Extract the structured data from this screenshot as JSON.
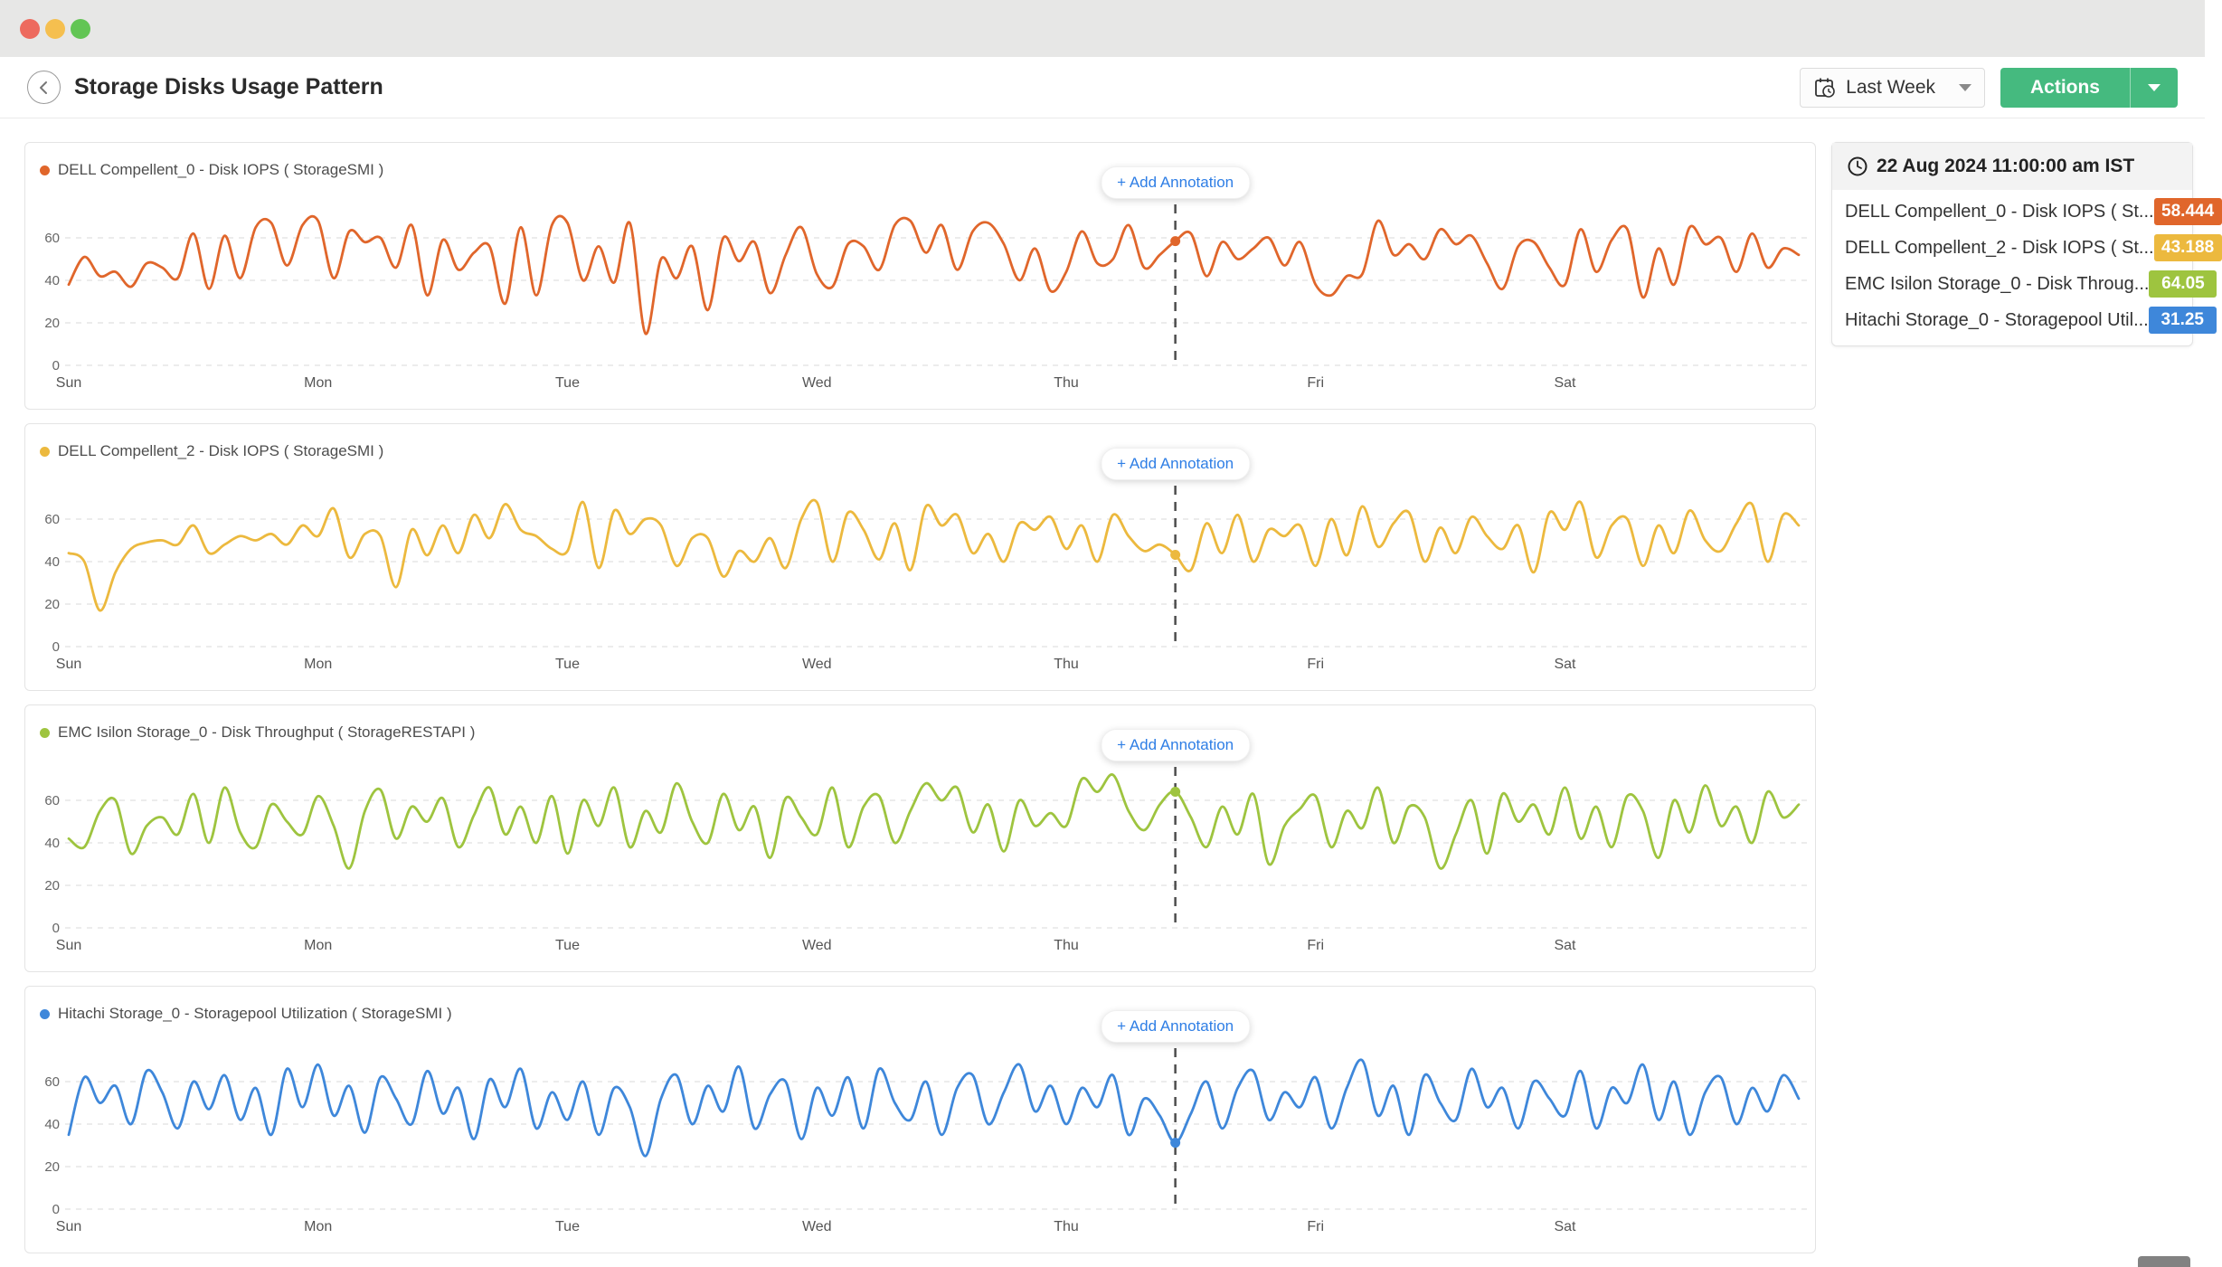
{
  "window": {
    "buttons": [
      "close",
      "minimize",
      "zoom"
    ]
  },
  "header": {
    "title": "Storage Disks Usage Pattern",
    "time_range_label": "Last Week",
    "actions_label": "Actions"
  },
  "annotation": {
    "button_label": "+ Add Annotation"
  },
  "tooltip_panel": {
    "timestamp": "22 Aug 2024 11:00:00 am IST",
    "rows": [
      {
        "label": "DELL Compellent_0 - Disk IOPS ( St...",
        "value": "58.444",
        "color": "#e0662b"
      },
      {
        "label": "DELL Compellent_2 - Disk IOPS ( St...",
        "value": "43.188",
        "color": "#ecb93e"
      },
      {
        "label": "EMC Isilon Storage_0 - Disk Throug...",
        "value": "64.05",
        "color": "#9ec43f"
      },
      {
        "label": "Hitachi Storage_0 - Storagepool Util...",
        "value": "31.25",
        "color": "#3e87da"
      }
    ]
  },
  "chart_data": [
    {
      "type": "line",
      "legend": "DELL Compellent_0 - Disk IOPS ( StorageSMI )",
      "color": "#e0662b",
      "x_labels": [
        "Sun",
        "Mon",
        "Tue",
        "Wed",
        "Thu",
        "Fri",
        "Sat"
      ],
      "y_ticks": [
        0,
        20,
        40,
        60
      ],
      "ylim": [
        0,
        75
      ],
      "points_per_day": 16,
      "cursor": {
        "index": 71,
        "value": 58.444
      },
      "values": [
        38,
        51,
        42,
        44,
        37,
        48,
        46,
        41,
        62,
        36,
        61,
        41,
        65,
        67,
        47,
        66,
        68,
        41,
        63,
        58,
        60,
        46,
        66,
        33,
        59,
        45,
        53,
        56,
        29,
        65,
        33,
        66,
        67,
        40,
        56,
        39,
        67,
        15,
        50,
        41,
        56,
        26,
        60,
        49,
        58,
        34,
        52,
        65,
        43,
        37,
        57,
        56,
        45,
        66,
        68,
        53,
        66,
        45,
        63,
        67,
        57,
        40,
        55,
        35,
        44,
        63,
        48,
        50,
        66,
        46,
        52,
        58.444,
        62,
        42,
        58,
        50,
        55,
        60,
        47,
        58,
        38,
        33,
        42,
        43,
        68,
        52,
        57,
        50,
        64,
        57,
        61,
        48,
        36,
        56,
        58,
        46,
        38,
        64,
        44,
        59,
        64,
        32,
        55,
        38,
        65,
        57,
        60,
        44,
        62,
        46,
        55,
        52
      ]
    },
    {
      "type": "line",
      "legend": "DELL Compellent_2 - Disk IOPS ( StorageSMI )",
      "color": "#ecb93e",
      "x_labels": [
        "Sun",
        "Mon",
        "Tue",
        "Wed",
        "Thu",
        "Fri",
        "Sat"
      ],
      "y_ticks": [
        0,
        20,
        40,
        60
      ],
      "ylim": [
        0,
        75
      ],
      "points_per_day": 16,
      "cursor": {
        "index": 71,
        "value": 43.188
      },
      "values": [
        44,
        40,
        17,
        35,
        46,
        49,
        50,
        48,
        57,
        44,
        48,
        52,
        50,
        53,
        48,
        57,
        52,
        65,
        42,
        53,
        52,
        28,
        55,
        43,
        57,
        44,
        62,
        51,
        67,
        55,
        52,
        46,
        45,
        68,
        37,
        64,
        53,
        60,
        57,
        38,
        51,
        51,
        33,
        45,
        40,
        51,
        37,
        60,
        68,
        40,
        63,
        55,
        41,
        58,
        36,
        66,
        57,
        62,
        44,
        53,
        40,
        58,
        55,
        61,
        46,
        57,
        40,
        62,
        52,
        45,
        48,
        43.188,
        36,
        58,
        44,
        62,
        40,
        55,
        52,
        57,
        38,
        60,
        43,
        66,
        47,
        58,
        63,
        40,
        56,
        44,
        61,
        52,
        46,
        57,
        35,
        63,
        55,
        68,
        42,
        57,
        60,
        38,
        57,
        44,
        64,
        50,
        45,
        58,
        67,
        40,
        62,
        57
      ]
    },
    {
      "type": "line",
      "legend": "EMC Isilon Storage_0 - Disk Throughput ( StorageRESTAPI )",
      "color": "#9ec43f",
      "x_labels": [
        "Sun",
        "Mon",
        "Tue",
        "Wed",
        "Thu",
        "Fri",
        "Sat"
      ],
      "y_ticks": [
        0,
        20,
        40,
        60
      ],
      "ylim": [
        0,
        75
      ],
      "points_per_day": 16,
      "cursor": {
        "index": 71,
        "value": 64.05
      },
      "values": [
        42,
        38,
        55,
        60,
        35,
        48,
        52,
        44,
        63,
        40,
        66,
        45,
        38,
        58,
        50,
        44,
        62,
        48,
        28,
        55,
        65,
        42,
        57,
        50,
        61,
        38,
        53,
        66,
        44,
        57,
        40,
        62,
        35,
        60,
        48,
        66,
        38,
        55,
        45,
        68,
        50,
        40,
        63,
        46,
        57,
        33,
        61,
        52,
        44,
        66,
        38,
        57,
        62,
        40,
        55,
        68,
        60,
        66,
        45,
        58,
        36,
        60,
        48,
        54,
        48,
        70,
        64,
        72,
        55,
        46,
        58,
        64.05,
        52,
        38,
        57,
        44,
        63,
        30,
        48,
        56,
        62,
        38,
        55,
        47,
        66,
        40,
        57,
        52,
        28,
        44,
        60,
        35,
        63,
        50,
        58,
        44,
        66,
        42,
        57,
        38,
        62,
        55,
        33,
        60,
        45,
        67,
        48,
        57,
        40,
        64,
        52,
        58
      ]
    },
    {
      "type": "line",
      "legend": "Hitachi Storage_0 - Storagepool Utilization ( StorageSMI )",
      "color": "#3e87da",
      "x_labels": [
        "Sun",
        "Mon",
        "Tue",
        "Wed",
        "Thu",
        "Fri",
        "Sat"
      ],
      "y_ticks": [
        0,
        20,
        40,
        60
      ],
      "ylim": [
        0,
        75
      ],
      "points_per_day": 16,
      "cursor": {
        "index": 71,
        "value": 31.25
      },
      "values": [
        35,
        62,
        50,
        58,
        40,
        65,
        55,
        38,
        60,
        47,
        63,
        42,
        57,
        35,
        66,
        48,
        68,
        44,
        58,
        36,
        62,
        52,
        40,
        65,
        45,
        57,
        33,
        61,
        48,
        66,
        38,
        55,
        42,
        60,
        35,
        57,
        48,
        25,
        52,
        63,
        40,
        58,
        46,
        67,
        38,
        54,
        60,
        33,
        57,
        44,
        62,
        38,
        66,
        50,
        42,
        60,
        35,
        57,
        63,
        40,
        55,
        68,
        46,
        58,
        40,
        57,
        48,
        63,
        35,
        52,
        44,
        31.25,
        45,
        60,
        38,
        57,
        65,
        42,
        55,
        48,
        62,
        38,
        57,
        70,
        44,
        58,
        35,
        63,
        50,
        42,
        66,
        48,
        57,
        38,
        60,
        52,
        44,
        65,
        38,
        57,
        50,
        68,
        42,
        60,
        35,
        55,
        62,
        40,
        57,
        46,
        63,
        52
      ]
    }
  ]
}
